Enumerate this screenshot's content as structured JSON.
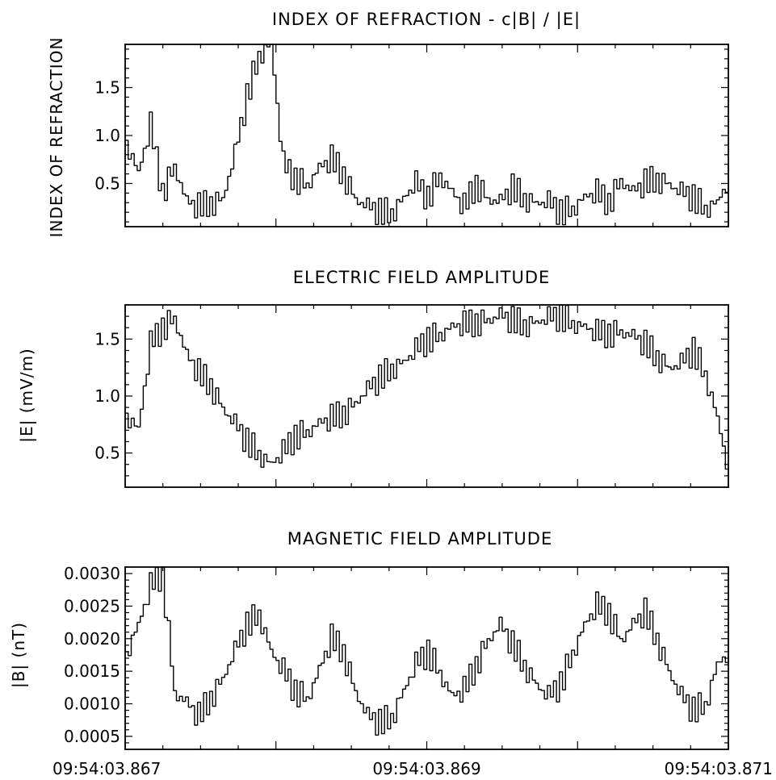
{
  "chart_data": [
    {
      "type": "line",
      "title": "INDEX OF REFRACTION - c|B| / |E|",
      "ylabel": "INDEX OF REFRACTION",
      "ylim": [
        0.05,
        1.95
      ],
      "yticks": [
        0.5,
        1.0,
        1.5
      ],
      "ytick_labels": [
        "0.5",
        "1.0",
        "1.5"
      ],
      "x": [
        0,
        0.08,
        0.16,
        0.24,
        0.32,
        0.4,
        0.48,
        0.56,
        0.64,
        0.72,
        0.8,
        0.88,
        0.96,
        1.04,
        1.12,
        1.2,
        1.28,
        1.36,
        1.44,
        1.52,
        1.6,
        1.68,
        1.76,
        1.84,
        1.92,
        2.0,
        2.08,
        2.16,
        2.24,
        2.32,
        2.4,
        2.48,
        2.56,
        2.64,
        2.72,
        2.8,
        2.88,
        2.96,
        3.04,
        3.12,
        3.2,
        3.28,
        3.36,
        3.44,
        3.52,
        3.6,
        3.68,
        3.76,
        3.84,
        3.92,
        4.0
      ],
      "series": [
        {
          "values": [
            0.95,
            0.6,
            1.1,
            0.4,
            0.7,
            0.3,
            0.25,
            0.3,
            0.35,
            0.8,
            1.4,
            1.85,
            1.95,
            0.7,
            0.55,
            0.5,
            0.65,
            0.75,
            0.6,
            0.35,
            0.25,
            0.2,
            0.2,
            0.35,
            0.5,
            0.35,
            0.6,
            0.4,
            0.25,
            0.5,
            0.35,
            0.3,
            0.45,
            0.35,
            0.3,
            0.3,
            0.2,
            0.25,
            0.35,
            0.4,
            0.3,
            0.55,
            0.4,
            0.5,
            0.55,
            0.5,
            0.4,
            0.35,
            0.25,
            0.3,
            0.55
          ]
        }
      ]
    },
    {
      "type": "line",
      "title": "ELECTRIC FIELD AMPLITUDE",
      "ylabel": "|E| (mV/m)",
      "ylim": [
        0.2,
        1.8
      ],
      "yticks": [
        0.5,
        1.0,
        1.5
      ],
      "ytick_labels": [
        "0.5",
        "1.0",
        "1.5"
      ],
      "x": [
        0,
        0.08,
        0.16,
        0.24,
        0.32,
        0.4,
        0.48,
        0.56,
        0.64,
        0.72,
        0.8,
        0.88,
        0.96,
        1.04,
        1.12,
        1.2,
        1.28,
        1.36,
        1.44,
        1.52,
        1.6,
        1.68,
        1.76,
        1.84,
        1.92,
        2.0,
        2.08,
        2.16,
        2.24,
        2.32,
        2.4,
        2.48,
        2.56,
        2.64,
        2.72,
        2.8,
        2.88,
        2.96,
        3.04,
        3.12,
        3.2,
        3.28,
        3.36,
        3.44,
        3.52,
        3.6,
        3.68,
        3.76,
        3.84,
        3.92,
        4.0
      ],
      "series": [
        {
          "values": [
            0.85,
            0.7,
            1.45,
            1.6,
            1.7,
            1.35,
            1.2,
            1.1,
            0.9,
            0.75,
            0.6,
            0.5,
            0.4,
            0.5,
            0.65,
            0.7,
            0.75,
            0.8,
            0.85,
            0.95,
            1.05,
            1.15,
            1.25,
            1.3,
            1.4,
            1.5,
            1.55,
            1.6,
            1.62,
            1.65,
            1.68,
            1.7,
            1.66,
            1.63,
            1.65,
            1.68,
            1.7,
            1.65,
            1.6,
            1.55,
            1.55,
            1.58,
            1.52,
            1.45,
            1.35,
            1.25,
            1.28,
            1.4,
            1.2,
            0.8,
            0.3
          ]
        }
      ]
    },
    {
      "type": "line",
      "title": "MAGNETIC FIELD AMPLITUDE",
      "ylabel": "|B| (nT)",
      "ylim": [
        0.0003,
        0.0031
      ],
      "yticks": [
        0.0005,
        0.001,
        0.0015,
        0.002,
        0.0025,
        0.003
      ],
      "ytick_labels": [
        "0.0005",
        "0.0010",
        "0.0015",
        "0.0020",
        "0.0025",
        "0.0030"
      ],
      "xticks": [
        0,
        2,
        4
      ],
      "xtick_labels": [
        "09:54:03.867",
        "09:54:03.869",
        "09:54:03.871"
      ],
      "x": [
        0,
        0.08,
        0.16,
        0.24,
        0.32,
        0.4,
        0.48,
        0.56,
        0.64,
        0.72,
        0.8,
        0.88,
        0.96,
        1.04,
        1.12,
        1.2,
        1.28,
        1.36,
        1.44,
        1.52,
        1.6,
        1.68,
        1.76,
        1.84,
        1.92,
        2.0,
        2.08,
        2.16,
        2.24,
        2.32,
        2.4,
        2.48,
        2.56,
        2.64,
        2.72,
        2.8,
        2.88,
        2.96,
        3.04,
        3.12,
        3.2,
        3.28,
        3.36,
        3.44,
        3.52,
        3.6,
        3.68,
        3.76,
        3.84,
        3.92,
        4.0
      ],
      "series": [
        {
          "values": [
            0.0018,
            0.0022,
            0.0028,
            0.003,
            0.0012,
            0.001,
            0.0008,
            0.0011,
            0.0014,
            0.0018,
            0.0022,
            0.0024,
            0.0018,
            0.0015,
            0.0012,
            0.0011,
            0.0015,
            0.002,
            0.0018,
            0.0012,
            0.0008,
            0.0007,
            0.0008,
            0.0012,
            0.0016,
            0.0018,
            0.0015,
            0.0011,
            0.0012,
            0.0016,
            0.002,
            0.0022,
            0.0019,
            0.0016,
            0.0013,
            0.0011,
            0.0013,
            0.0018,
            0.0022,
            0.0025,
            0.0024,
            0.002,
            0.0022,
            0.0024,
            0.002,
            0.0015,
            0.0011,
            0.0009,
            0.001,
            0.0016,
            0.0018
          ]
        }
      ]
    }
  ]
}
